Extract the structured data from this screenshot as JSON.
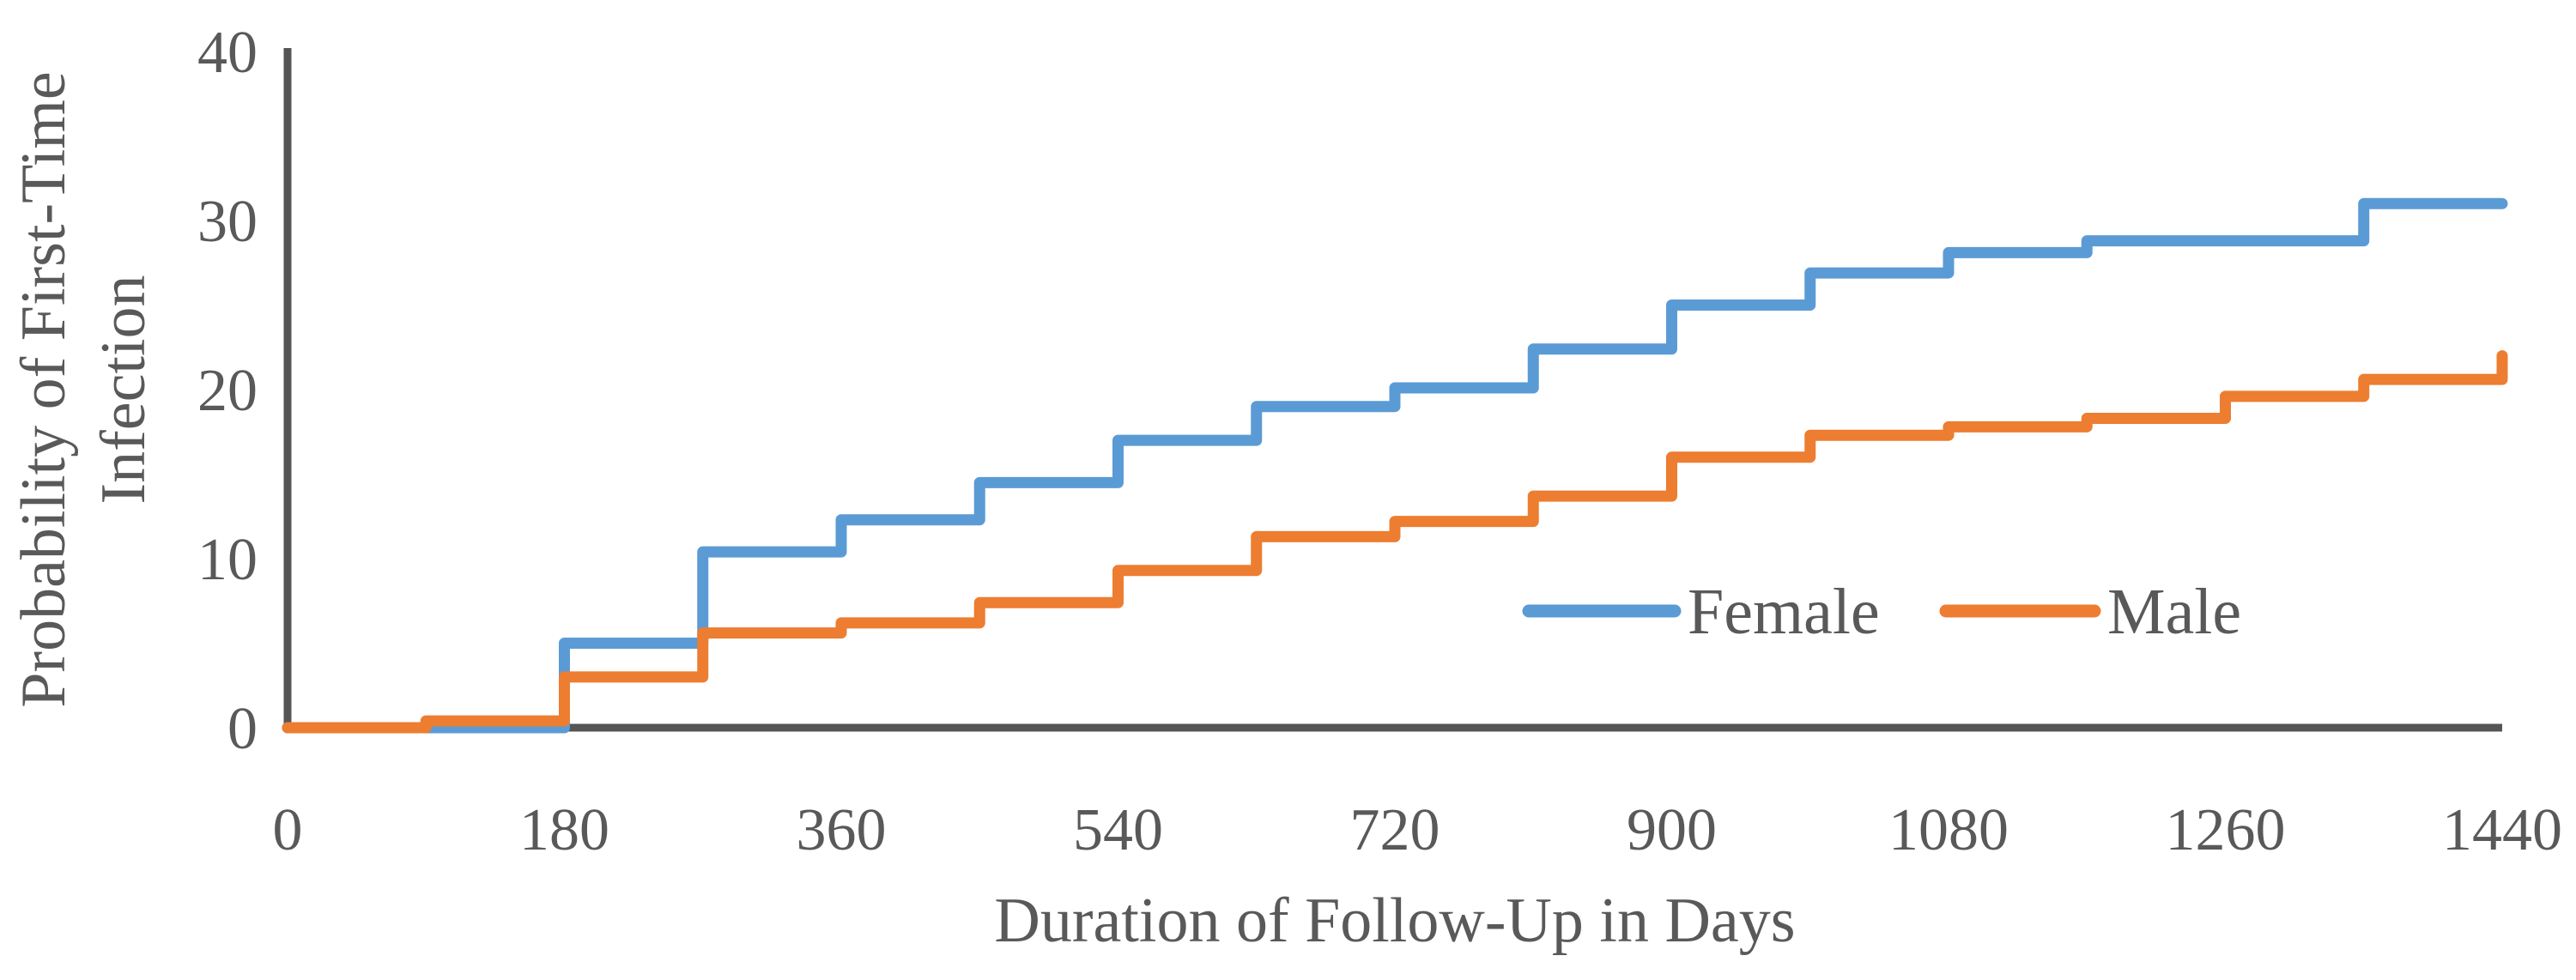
{
  "chart_data": {
    "type": "line",
    "subtype": "step-after",
    "title": "",
    "xlabel": "Duration of Follow-Up in Days",
    "ylabel_lines": [
      "Probability of First-Time",
      "Infection"
    ],
    "xlim": [
      0,
      1440
    ],
    "ylim": [
      0,
      40
    ],
    "xticks": [
      0,
      180,
      360,
      540,
      720,
      900,
      1080,
      1260,
      1440
    ],
    "yticks": [
      0,
      10,
      20,
      30,
      40
    ],
    "grid": false,
    "legend_position": "inside-right-middle",
    "series": [
      {
        "name": "Female",
        "color": "#5B9BD5",
        "start": [
          0,
          0
        ],
        "end_x": 1440,
        "steps": [
          [
            180,
            5.0
          ],
          [
            270,
            10.4
          ],
          [
            360,
            12.3
          ],
          [
            450,
            14.5
          ],
          [
            540,
            17.0
          ],
          [
            630,
            19.0
          ],
          [
            720,
            20.1
          ],
          [
            810,
            22.4
          ],
          [
            900,
            25.0
          ],
          [
            990,
            26.9
          ],
          [
            1080,
            28.1
          ],
          [
            1170,
            28.8
          ],
          [
            1350,
            31.0
          ]
        ]
      },
      {
        "name": "Male",
        "color": "#ED7D31",
        "start": [
          0,
          0
        ],
        "end_x": 1440,
        "steps": [
          [
            90,
            0.4
          ],
          [
            180,
            3.0
          ],
          [
            270,
            5.6
          ],
          [
            360,
            6.2
          ],
          [
            450,
            7.4
          ],
          [
            540,
            9.3
          ],
          [
            630,
            11.3
          ],
          [
            720,
            12.2
          ],
          [
            810,
            13.7
          ],
          [
            900,
            16.0
          ],
          [
            990,
            17.3
          ],
          [
            1080,
            17.8
          ],
          [
            1170,
            18.3
          ],
          [
            1260,
            19.6
          ],
          [
            1350,
            20.6
          ],
          [
            1440,
            22.0
          ]
        ]
      }
    ]
  },
  "colors": {
    "female_line": "#5B9BD5",
    "male_line": "#ED7D31",
    "axis_line": "#555555",
    "text": "#595959",
    "background": "#FFFFFF"
  }
}
